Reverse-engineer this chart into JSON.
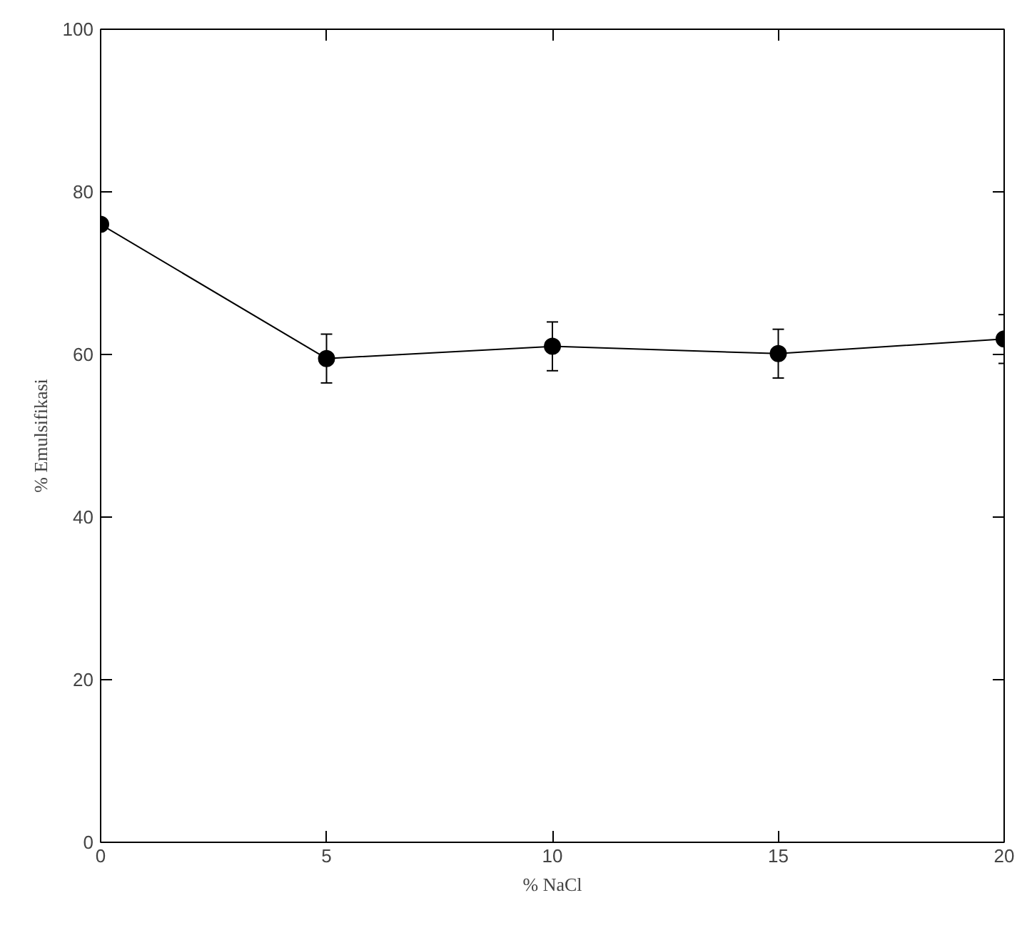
{
  "chart_data": {
    "type": "line",
    "xlabel": "% NaCl",
    "ylabel": "% Emulsifikasi",
    "x": [
      0,
      5,
      10,
      15,
      20
    ],
    "series": [
      {
        "color": "#000000",
        "values": [
          76,
          59.5,
          61,
          60.1,
          61.9
        ],
        "errors": [
          null,
          3,
          3,
          3,
          3
        ]
      }
    ],
    "xlim": [
      0,
      20
    ],
    "xticks": [
      0,
      5,
      10,
      15,
      20
    ],
    "ylim": [
      0,
      100
    ],
    "yticks": [
      0,
      20,
      40,
      60,
      80,
      100
    ],
    "grid": false,
    "marker": "circle",
    "line_style": "solid"
  }
}
